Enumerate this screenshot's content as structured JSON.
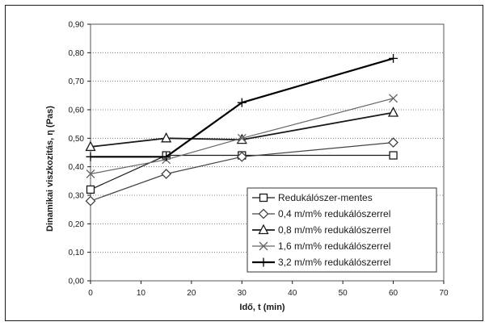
{
  "chart_data": {
    "type": "line",
    "title": "",
    "xlabel": "Idő, t (min)",
    "ylabel": "Dinamikai viszkozitás,  η  (Pas)",
    "xlim": [
      0,
      70
    ],
    "ylim": [
      0,
      0.9
    ],
    "x_ticks": [
      "0",
      "10",
      "20",
      "30",
      "40",
      "50",
      "60",
      "70"
    ],
    "y_ticks": [
      "0,00",
      "0,10",
      "0,20",
      "0,30",
      "0,40",
      "0,50",
      "0,60",
      "0,70",
      "0,80",
      "0,90"
    ],
    "grid": "horizontal dotted",
    "legend_position": "bottom-right",
    "series": [
      {
        "name": "Redukálószer-mentes",
        "marker": "square",
        "color": "#1a1a1a",
        "x": [
          0,
          15,
          30,
          60
        ],
        "values": [
          0.32,
          0.44,
          0.44,
          0.44
        ]
      },
      {
        "name": "0,4 m/m% redukálószerrel",
        "marker": "diamond",
        "color": "#444444",
        "x": [
          0,
          15,
          30,
          60
        ],
        "values": [
          0.28,
          0.375,
          0.435,
          0.485
        ]
      },
      {
        "name": "0,8 m/m% redukálószerrel",
        "marker": "triangle",
        "color": "#1a1a1a",
        "x": [
          0,
          15,
          30,
          60
        ],
        "values": [
          0.47,
          0.5,
          0.495,
          0.59
        ]
      },
      {
        "name": "1,6 m/m% redukálószerrel",
        "marker": "x",
        "color": "#666666",
        "x": [
          0,
          15,
          30,
          60
        ],
        "values": [
          0.375,
          0.425,
          0.5,
          0.64
        ]
      },
      {
        "name": "3,2 m/m% redukálószerrel",
        "marker": "plus",
        "color": "#000000",
        "x": [
          0,
          15,
          30,
          60
        ],
        "values": [
          0.435,
          0.435,
          0.625,
          0.78
        ]
      }
    ]
  }
}
